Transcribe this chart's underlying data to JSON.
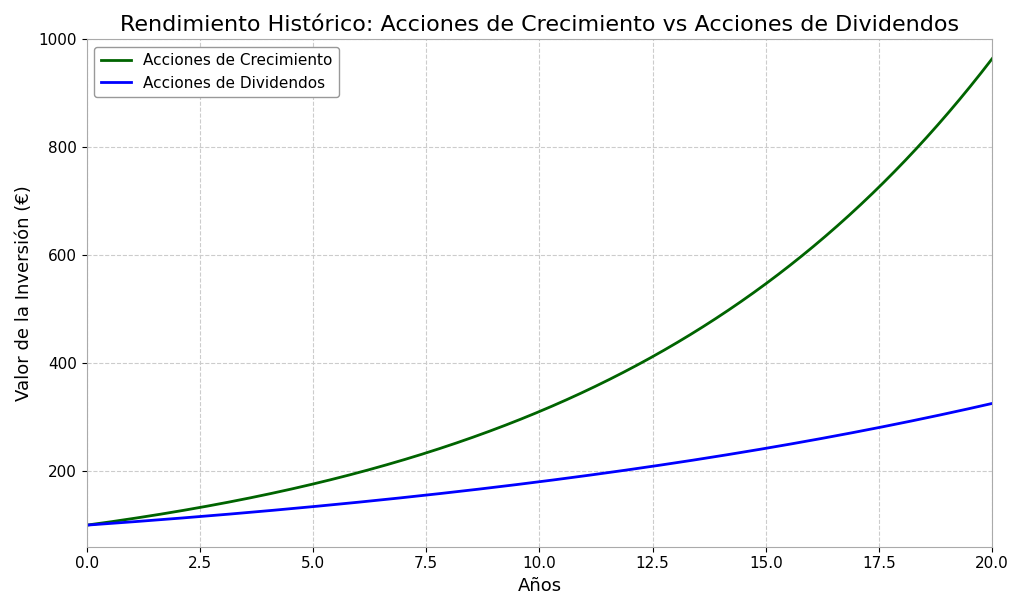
{
  "title": "Rendimiento Histórico: Acciones de Crecimiento vs Acciones de Dividendos",
  "xlabel": "Años",
  "ylabel": "Valor de la Inversión (€)",
  "x_start": 0,
  "x_end": 20,
  "num_points": 1000,
  "growth_rate": 0.1133,
  "dividend_rate": 0.059,
  "initial_value": 100,
  "growth_color": "#006400",
  "dividend_color": "#0000ff",
  "growth_label": "Acciones de Crecimiento",
  "dividend_label": "Acciones de Dividendos",
  "line_width": 2,
  "background_color": "#ffffff",
  "grid_color": "#cccccc",
  "grid_style": "--",
  "ylim_bottom": 60,
  "ylim_top": 1000,
  "xlim": [
    0,
    20
  ],
  "yticks": [
    200,
    400,
    600,
    800,
    1000
  ],
  "xticks": [
    0.0,
    2.5,
    5.0,
    7.5,
    10.0,
    12.5,
    15.0,
    17.5,
    20.0
  ],
  "title_fontsize": 16,
  "axis_label_fontsize": 13,
  "tick_fontsize": 11,
  "legend_fontsize": 11
}
